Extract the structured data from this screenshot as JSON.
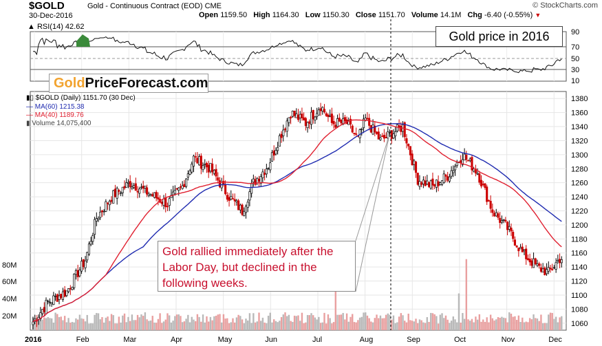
{
  "header": {
    "symbol": "$GOLD",
    "description": "Gold - Continuous Contract (EOD)",
    "exchange": "CME",
    "date": "30-Dec-2016",
    "watermark": "© StockCharts.com",
    "open_label": "Open",
    "open": "1159.50",
    "high_label": "High",
    "high": "1164.30",
    "low_label": "Low",
    "low": "1150.30",
    "close_label": "Close",
    "close": "1151.70",
    "volume_label": "Volume",
    "volume": "14.1M",
    "chg_label": "Chg",
    "chg": "-6.40 (-0.55%)"
  },
  "rsi": {
    "label": "RSI(14) 42.62"
  },
  "title_box": "Gold price in 2016",
  "brand": {
    "gold": "Gold",
    "rest": "PriceForecast.com"
  },
  "legend": {
    "main": "$GOLD (Daily) 1151.70 (30 Dec)",
    "ma60": "MA(60) 1215.38",
    "ma40": "MA(40) 1189.76",
    "volume": "Volume 14,075,400"
  },
  "annotation": "Gold rallied immediately after the Labor Day, but declined in the following weeks.",
  "colors": {
    "up": "#000000",
    "down": "#cc0000",
    "ma60": "#1f2bb0",
    "ma40": "#e02030",
    "volume_down": "#e9a0a0",
    "volume_up": "#b9b9b9"
  },
  "chart_data": {
    "type": "line",
    "xlabel": "",
    "ylabel": "",
    "x_ticks": [
      "2016",
      "Feb",
      "Mar",
      "Apr",
      "May",
      "Jun",
      "Jul",
      "Aug",
      "Sep",
      "Oct",
      "Nov",
      "Dec"
    ],
    "price_axis": {
      "ticks": [
        1060,
        1080,
        1100,
        1120,
        1140,
        1160,
        1180,
        1200,
        1220,
        1240,
        1260,
        1280,
        1300,
        1320,
        1340,
        1360,
        1380
      ],
      "ylim": [
        1050,
        1390
      ]
    },
    "volume_axis": {
      "ticks": [
        "20M",
        "40M",
        "60M",
        "80M"
      ]
    },
    "rsi_axis": {
      "ticks": [
        10,
        30,
        50,
        70,
        90
      ]
    },
    "series": [
      {
        "name": "$GOLD (Daily)",
        "kind": "candlestick",
        "x": [
          "Jan",
          "Feb",
          "Mar",
          "Apr",
          "May",
          "Jun",
          "Jul",
          "Aug",
          "Sep",
          "Oct",
          "Nov",
          "Dec"
        ],
        "close": [
          1118,
          1235,
          1237,
          1292,
          1216,
          1320,
          1350,
          1310,
          1316,
          1275,
          1175,
          1152
        ]
      },
      {
        "name": "MA(60)",
        "x": [
          "Jan",
          "Feb",
          "Mar",
          "Apr",
          "May",
          "Jun",
          "Jul",
          "Aug",
          "Sep",
          "Oct",
          "Nov",
          "Dec"
        ],
        "values": [
          1080,
          1110,
          1180,
          1225,
          1250,
          1260,
          1295,
          1320,
          1335,
          1325,
          1285,
          1215
        ]
      },
      {
        "name": "MA(40)",
        "x": [
          "Jan",
          "Feb",
          "Mar",
          "Apr",
          "May",
          "Jun",
          "Jul",
          "Aug",
          "Sep",
          "Oct",
          "Nov",
          "Dec"
        ],
        "values": [
          1085,
          1140,
          1210,
          1240,
          1255,
          1270,
          1320,
          1335,
          1335,
          1300,
          1250,
          1190
        ]
      }
    ]
  }
}
